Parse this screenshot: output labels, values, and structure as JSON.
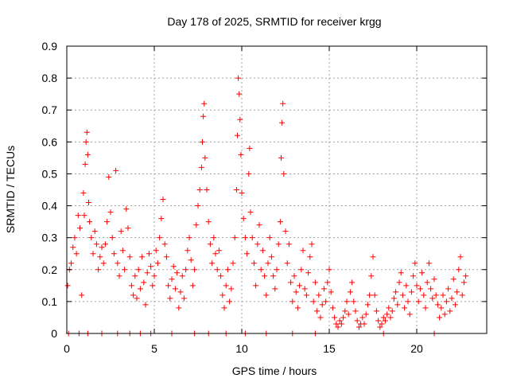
{
  "chart_data": {
    "type": "scatter",
    "title": "Day 178 of 2025, SRMTID for receiver krgg",
    "xlabel": "GPS time / hours",
    "ylabel": "SRMTID / TECUs",
    "xlim": [
      0,
      24
    ],
    "ylim": [
      0,
      0.9
    ],
    "xticks": [
      0,
      5,
      10,
      15,
      20
    ],
    "xtick_labels": [
      "0",
      "5",
      "10",
      "15",
      "20"
    ],
    "yticks": [
      0,
      0.1,
      0.2,
      0.3,
      0.4,
      0.5,
      0.6,
      0.7,
      0.8,
      0.9
    ],
    "ytick_labels": [
      "0",
      "0.1",
      "0.2",
      "0.3",
      "0.4",
      "0.5",
      "0.6",
      "0.7",
      "0.8",
      "0.9"
    ],
    "grid": true,
    "marker": "+",
    "series": [
      {
        "name": "SRMTID",
        "color": "#ff0000",
        "points": [
          [
            0.05,
            0.15
          ],
          [
            0.15,
            0.2
          ],
          [
            0.25,
            0.22
          ],
          [
            0.35,
            0.27
          ],
          [
            0.45,
            0.3
          ],
          [
            0.55,
            0.25
          ],
          [
            0.65,
            0.37
          ],
          [
            0.75,
            0.33
          ],
          [
            0.85,
            0.12
          ],
          [
            0.95,
            0.44
          ],
          [
            1.0,
            0.37
          ],
          [
            1.05,
            0.53
          ],
          [
            1.1,
            0.6
          ],
          [
            1.15,
            0.63
          ],
          [
            1.2,
            0.56
          ],
          [
            1.25,
            0.41
          ],
          [
            1.3,
            0.35
          ],
          [
            1.4,
            0.3
          ],
          [
            1.5,
            0.25
          ],
          [
            1.6,
            0.32
          ],
          [
            1.7,
            0.28
          ],
          [
            1.8,
            0.2
          ],
          [
            1.9,
            0.24
          ],
          [
            2.0,
            0.27
          ],
          [
            2.1,
            0.22
          ],
          [
            2.2,
            0.28
          ],
          [
            2.3,
            0.35
          ],
          [
            2.4,
            0.49
          ],
          [
            2.5,
            0.38
          ],
          [
            2.6,
            0.3
          ],
          [
            2.7,
            0.25
          ],
          [
            2.8,
            0.51
          ],
          [
            2.9,
            0.22
          ],
          [
            3.0,
            0.18
          ],
          [
            3.1,
            0.32
          ],
          [
            3.2,
            0.26
          ],
          [
            3.3,
            0.2
          ],
          [
            3.4,
            0.39
          ],
          [
            3.5,
            0.33
          ],
          [
            3.6,
            0.24
          ],
          [
            3.7,
            0.15
          ],
          [
            3.8,
            0.12
          ],
          [
            3.9,
            0.18
          ],
          [
            4.0,
            0.11
          ],
          [
            4.1,
            0.2
          ],
          [
            4.2,
            0.14
          ],
          [
            4.3,
            0.24
          ],
          [
            4.4,
            0.16
          ],
          [
            4.5,
            0.09
          ],
          [
            4.6,
            0.19
          ],
          [
            4.7,
            0.25
          ],
          [
            4.8,
            0.21
          ],
          [
            4.9,
            0.15
          ],
          [
            5.0,
            0.18
          ],
          [
            5.1,
            0.26
          ],
          [
            5.2,
            0.22
          ],
          [
            5.3,
            0.3
          ],
          [
            5.4,
            0.36
          ],
          [
            5.5,
            0.42
          ],
          [
            5.6,
            0.28
          ],
          [
            5.7,
            0.24
          ],
          [
            5.8,
            0.15
          ],
          [
            5.9,
            0.11
          ],
          [
            6.0,
            0.17
          ],
          [
            6.1,
            0.21
          ],
          [
            6.2,
            0.14
          ],
          [
            6.3,
            0.19
          ],
          [
            6.4,
            0.08
          ],
          [
            6.5,
            0.13
          ],
          [
            6.6,
            0.18
          ],
          [
            6.7,
            0.11
          ],
          [
            6.8,
            0.2
          ],
          [
            6.9,
            0.26
          ],
          [
            7.0,
            0.3
          ],
          [
            7.1,
            0.23
          ],
          [
            7.2,
            0.15
          ],
          [
            7.3,
            0.2
          ],
          [
            7.4,
            0.34
          ],
          [
            7.5,
            0.4
          ],
          [
            7.6,
            0.45
          ],
          [
            7.7,
            0.52
          ],
          [
            7.75,
            0.6
          ],
          [
            7.8,
            0.68
          ],
          [
            7.85,
            0.72
          ],
          [
            7.9,
            0.55
          ],
          [
            8.0,
            0.45
          ],
          [
            8.1,
            0.35
          ],
          [
            8.2,
            0.28
          ],
          [
            8.3,
            0.22
          ],
          [
            8.4,
            0.3
          ],
          [
            8.5,
            0.25
          ],
          [
            8.6,
            0.2
          ],
          [
            8.7,
            0.26
          ],
          [
            8.8,
            0.18
          ],
          [
            8.9,
            0.12
          ],
          [
            9.0,
            0.08
          ],
          [
            9.1,
            0.15
          ],
          [
            9.2,
            0.2
          ],
          [
            9.3,
            0.1
          ],
          [
            9.4,
            0.14
          ],
          [
            9.5,
            0.22
          ],
          [
            9.6,
            0.3
          ],
          [
            9.7,
            0.45
          ],
          [
            9.75,
            0.62
          ],
          [
            9.8,
            0.8
          ],
          [
            9.85,
            0.75
          ],
          [
            9.9,
            0.67
          ],
          [
            9.95,
            0.56
          ],
          [
            10.0,
            0.44
          ],
          [
            10.1,
            0.36
          ],
          [
            10.2,
            0.3
          ],
          [
            10.3,
            0.25
          ],
          [
            10.4,
            0.5
          ],
          [
            10.45,
            0.58
          ],
          [
            10.5,
            0.38
          ],
          [
            10.6,
            0.3
          ],
          [
            10.7,
            0.22
          ],
          [
            10.8,
            0.15
          ],
          [
            10.9,
            0.28
          ],
          [
            11.0,
            0.34
          ],
          [
            11.1,
            0.2
          ],
          [
            11.2,
            0.26
          ],
          [
            11.3,
            0.18
          ],
          [
            11.4,
            0.12
          ],
          [
            11.5,
            0.22
          ],
          [
            11.6,
            0.3
          ],
          [
            11.7,
            0.24
          ],
          [
            11.8,
            0.18
          ],
          [
            11.9,
            0.14
          ],
          [
            12.0,
            0.2
          ],
          [
            12.1,
            0.28
          ],
          [
            12.2,
            0.35
          ],
          [
            12.25,
            0.55
          ],
          [
            12.3,
            0.66
          ],
          [
            12.35,
            0.72
          ],
          [
            12.4,
            0.5
          ],
          [
            12.5,
            0.32
          ],
          [
            12.6,
            0.22
          ],
          [
            12.7,
            0.28
          ],
          [
            12.8,
            0.16
          ],
          [
            12.9,
            0.1
          ],
          [
            13.0,
            0.18
          ],
          [
            13.1,
            0.13
          ],
          [
            13.2,
            0.08
          ],
          [
            13.3,
            0.15
          ],
          [
            13.4,
            0.2
          ],
          [
            13.5,
            0.26
          ],
          [
            13.6,
            0.14
          ],
          [
            13.7,
            0.12
          ],
          [
            13.8,
            0.19
          ],
          [
            13.9,
            0.24
          ],
          [
            14.0,
            0.28
          ],
          [
            14.1,
            0.1
          ],
          [
            14.2,
            0.16
          ],
          [
            14.3,
            0.07
          ],
          [
            14.4,
            0.12
          ],
          [
            14.5,
            0.05
          ],
          [
            14.6,
            0.09
          ],
          [
            14.7,
            0.14
          ],
          [
            14.8,
            0.1
          ],
          [
            14.9,
            0.16
          ],
          [
            15.0,
            0.2
          ],
          [
            15.1,
            0.13
          ],
          [
            15.2,
            0.08
          ],
          [
            15.3,
            0.05
          ],
          [
            15.4,
            0.03
          ],
          [
            15.5,
            0.02
          ],
          [
            15.6,
            0.04
          ],
          [
            15.7,
            0.03
          ],
          [
            15.8,
            0.05
          ],
          [
            15.9,
            0.07
          ],
          [
            16.0,
            0.1
          ],
          [
            16.1,
            0.06
          ],
          [
            16.2,
            0.13
          ],
          [
            16.3,
            0.16
          ],
          [
            16.4,
            0.1
          ],
          [
            16.5,
            0.07
          ],
          [
            16.6,
            0.04
          ],
          [
            16.7,
            0.02
          ],
          [
            16.8,
            0.03
          ],
          [
            16.9,
            0.05
          ],
          [
            17.0,
            0.03
          ],
          [
            17.1,
            0.06
          ],
          [
            17.2,
            0.09
          ],
          [
            17.3,
            0.12
          ],
          [
            17.4,
            0.18
          ],
          [
            17.5,
            0.24
          ],
          [
            17.6,
            0.12
          ],
          [
            17.7,
            0.07
          ],
          [
            17.8,
            0.04
          ],
          [
            17.9,
            0.02
          ],
          [
            18.0,
            0.03
          ],
          [
            18.1,
            0.05
          ],
          [
            18.2,
            0.04
          ],
          [
            18.3,
            0.06
          ],
          [
            18.4,
            0.08
          ],
          [
            18.5,
            0.05
          ],
          [
            18.6,
            0.07
          ],
          [
            18.7,
            0.11
          ],
          [
            18.8,
            0.13
          ],
          [
            18.9,
            0.09
          ],
          [
            19.0,
            0.16
          ],
          [
            19.1,
            0.19
          ],
          [
            19.2,
            0.12
          ],
          [
            19.3,
            0.08
          ],
          [
            19.4,
            0.15
          ],
          [
            19.5,
            0.1
          ],
          [
            19.6,
            0.06
          ],
          [
            19.7,
            0.13
          ],
          [
            19.8,
            0.18
          ],
          [
            19.9,
            0.22
          ],
          [
            20.0,
            0.15
          ],
          [
            20.1,
            0.1
          ],
          [
            20.2,
            0.14
          ],
          [
            20.3,
            0.19
          ],
          [
            20.4,
            0.12
          ],
          [
            20.5,
            0.08
          ],
          [
            20.6,
            0.16
          ],
          [
            20.7,
            0.22
          ],
          [
            20.8,
            0.14
          ],
          [
            20.9,
            0.11
          ],
          [
            21.0,
            0.17
          ],
          [
            21.1,
            0.12
          ],
          [
            21.2,
            0.09
          ],
          [
            21.3,
            0.05
          ],
          [
            21.4,
            0.08
          ],
          [
            21.5,
            0.12
          ],
          [
            21.6,
            0.06
          ],
          [
            21.7,
            0.1
          ],
          [
            21.8,
            0.14
          ],
          [
            21.9,
            0.07
          ],
          [
            22.0,
            0.11
          ],
          [
            22.1,
            0.17
          ],
          [
            22.2,
            0.09
          ],
          [
            22.3,
            0.13
          ],
          [
            22.4,
            0.2
          ],
          [
            22.5,
            0.24
          ],
          [
            22.6,
            0.12
          ],
          [
            22.7,
            0.16
          ],
          [
            22.8,
            0.18
          ],
          [
            0.1,
            0.0
          ],
          [
            0.7,
            0.0
          ],
          [
            1.2,
            0.0
          ],
          [
            2.0,
            0.0
          ],
          [
            2.9,
            0.0
          ],
          [
            3.6,
            0.0
          ],
          [
            4.2,
            0.0
          ],
          [
            4.8,
            0.0
          ],
          [
            6.0,
            0.0
          ],
          [
            7.3,
            0.0
          ],
          [
            8.1,
            0.0
          ],
          [
            9.1,
            0.0
          ],
          [
            10.2,
            0.0
          ],
          [
            11.4,
            0.0
          ],
          [
            12.9,
            0.0
          ],
          [
            14.2,
            0.0
          ],
          [
            18.1,
            0.0
          ],
          [
            21.0,
            0.0
          ]
        ]
      }
    ]
  }
}
